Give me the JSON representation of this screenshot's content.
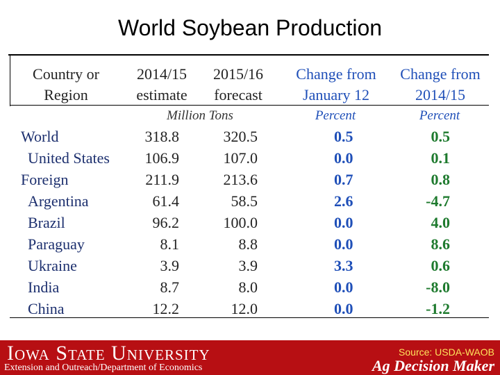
{
  "title": "World Soybean Production",
  "table": {
    "headers": {
      "region": [
        "Country or",
        "Region"
      ],
      "y1": [
        "2014/15",
        "estimate"
      ],
      "y2": [
        "2015/16",
        "forecast"
      ],
      "chg_jan": [
        "Change from",
        "January 12"
      ],
      "chg_prev": [
        "Change from",
        "2014/15"
      ]
    },
    "units": {
      "tons": "Million Tons",
      "pct1": "Percent",
      "pct2": "Percent"
    },
    "rows": [
      {
        "name": "World",
        "y1": "318.8",
        "y2": "320.5",
        "chg_jan": "0.5",
        "chg_prev": "0.5"
      },
      {
        "name": "United States",
        "y1": "106.9",
        "y2": "107.0",
        "chg_jan": "0.0",
        "chg_prev": "0.1"
      },
      {
        "name": "Foreign",
        "y1": "211.9",
        "y2": "213.6",
        "chg_jan": "0.7",
        "chg_prev": "0.8"
      },
      {
        "name": "Argentina",
        "y1": "61.4",
        "y2": "58.5",
        "chg_jan": "2.6",
        "chg_prev": "-4.7"
      },
      {
        "name": "Brazil",
        "y1": "96.2",
        "y2": "100.0",
        "chg_jan": "0.0",
        "chg_prev": "4.0"
      },
      {
        "name": "Paraguay",
        "y1": "8.1",
        "y2": "8.8",
        "chg_jan": "0.0",
        "chg_prev": "8.6"
      },
      {
        "name": "Ukraine",
        "y1": "3.9",
        "y2": "3.9",
        "chg_jan": "3.3",
        "chg_prev": "0.6"
      },
      {
        "name": "India",
        "y1": "8.7",
        "y2": "8.0",
        "chg_jan": "0.0",
        "chg_prev": "-8.0"
      },
      {
        "name": "China",
        "y1": "12.2",
        "y2": "12.0",
        "chg_jan": "0.0",
        "chg_prev": "-1.2"
      }
    ]
  },
  "footer": {
    "university": "Iowa State University",
    "extension": "Extension and Outreach/Department of Economics",
    "source": "Source: USDA-WAOB",
    "brand": "Ag Decision Maker"
  },
  "colors": {
    "footer_bg": "#b70f13",
    "blue_header": "#1f4fb8",
    "green_values": "#1e7a2e",
    "source_text": "#ffe45c"
  }
}
